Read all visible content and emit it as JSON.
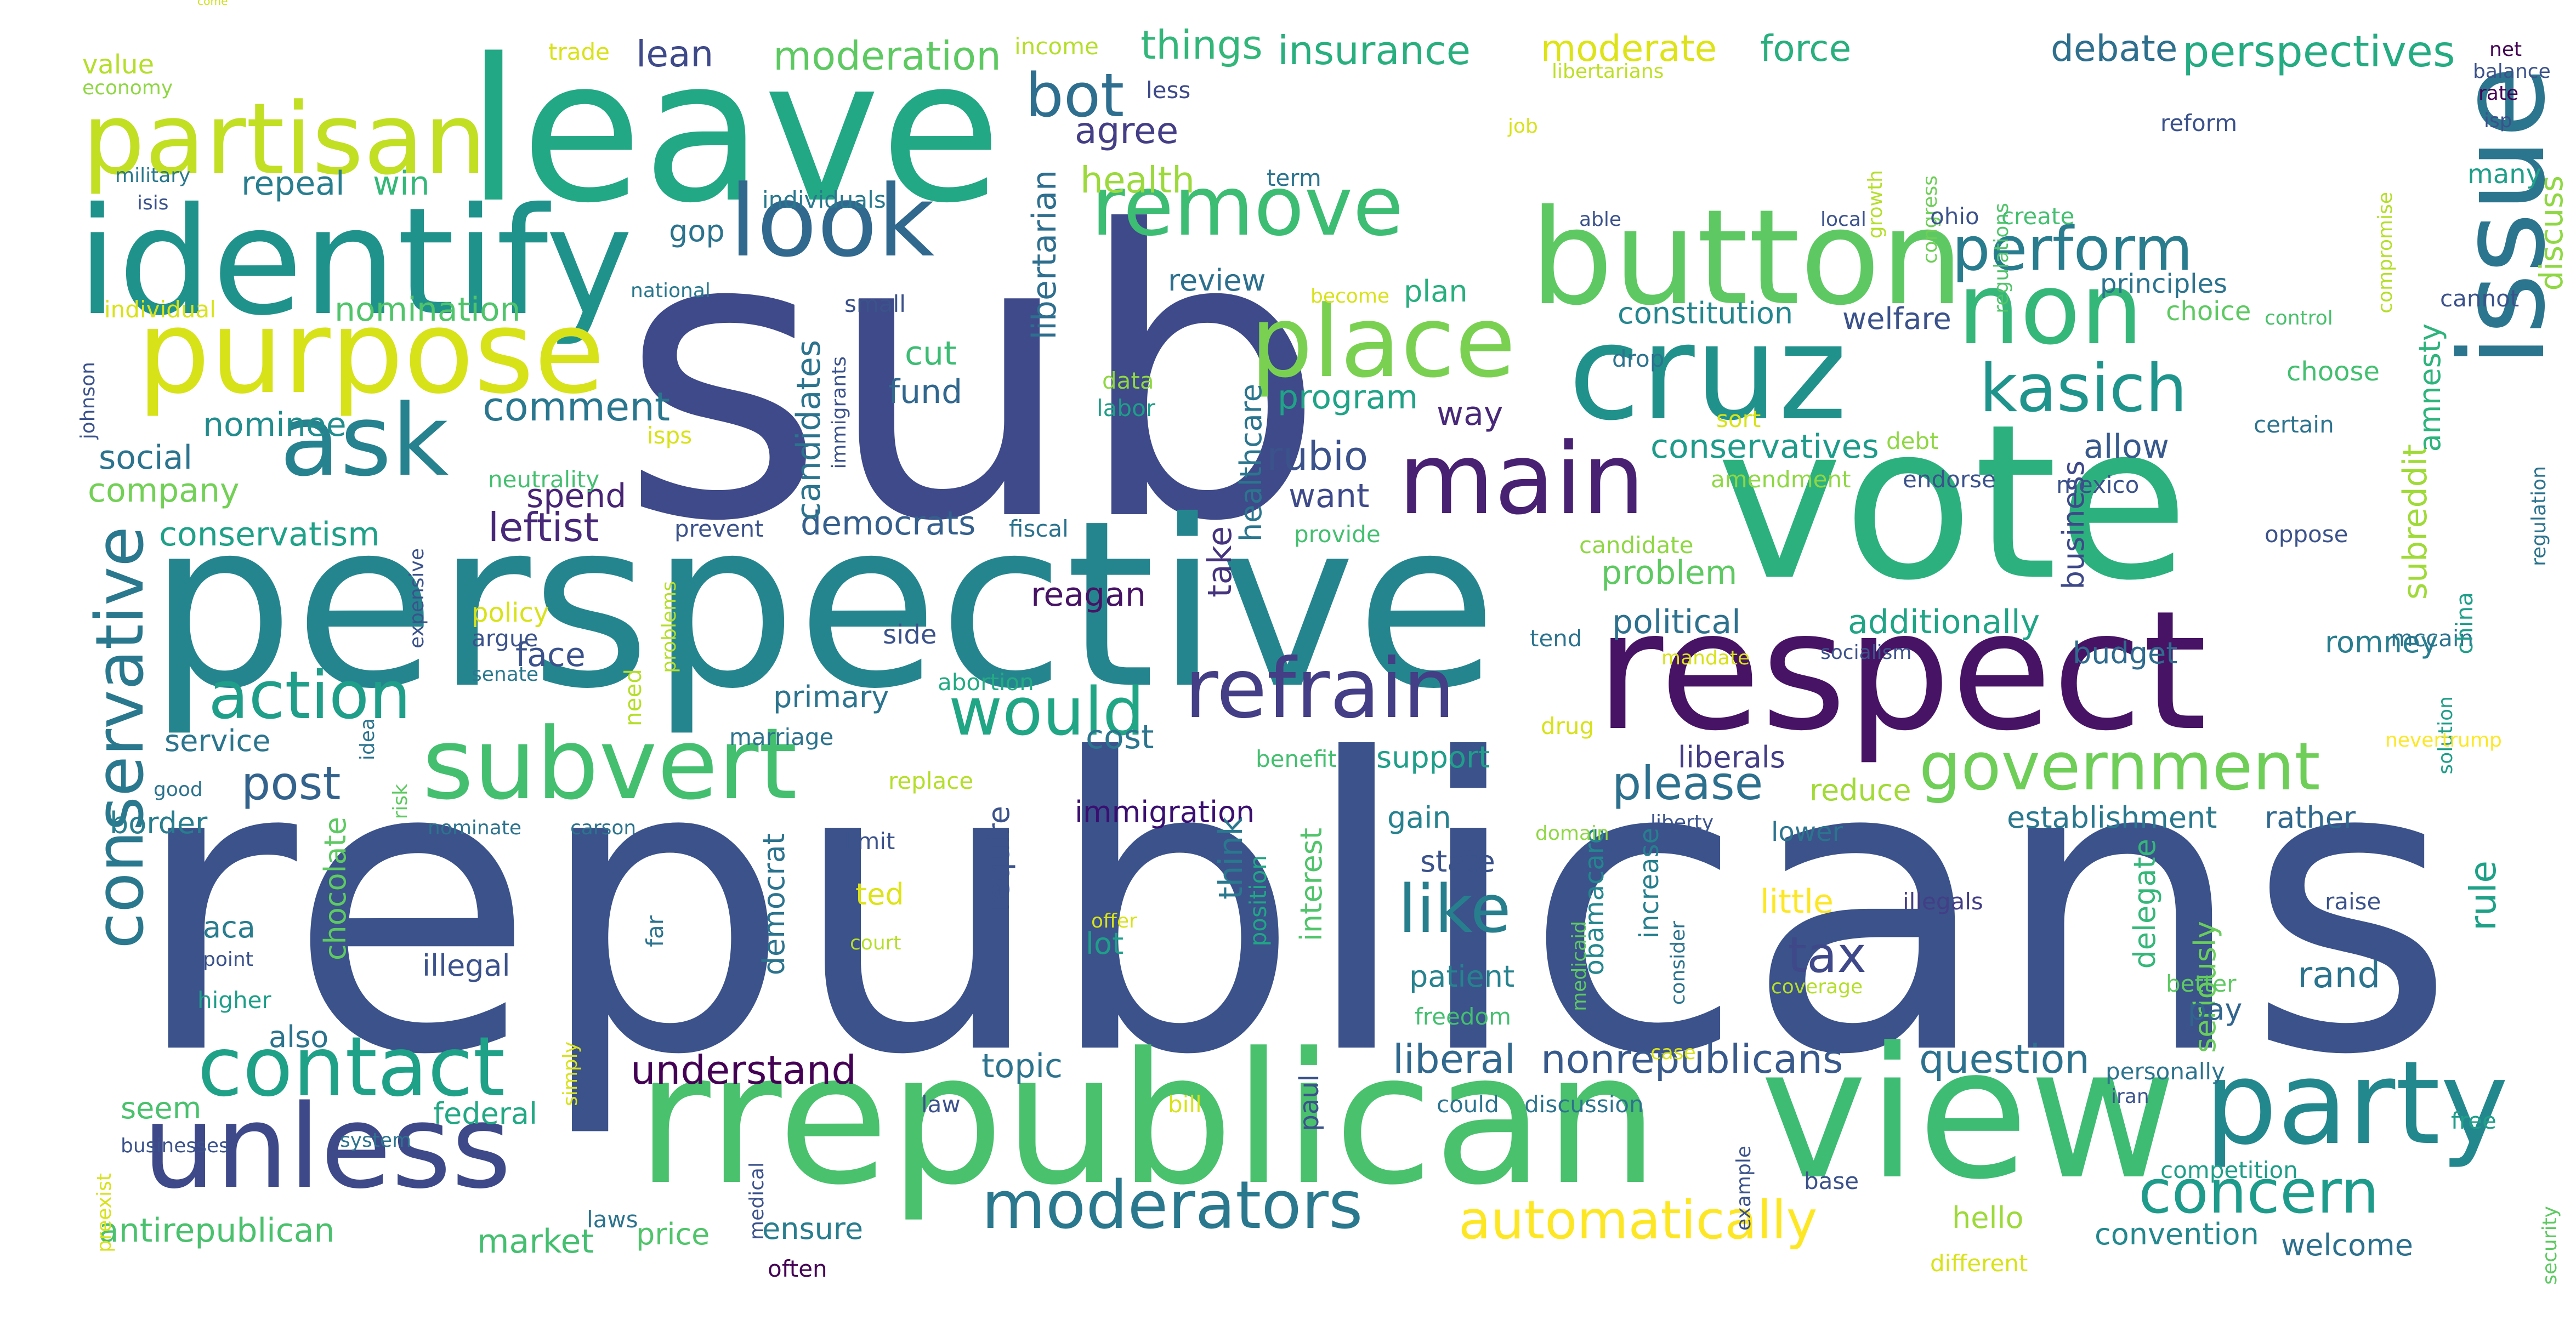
{
  "wordcloud": {
    "words": [
      {
        "text": "republicans",
        "color": "#3b528b"
      },
      {
        "text": "sub",
        "color": "#3e4a89"
      },
      {
        "text": "republican",
        "color": "#472d7b"
      },
      {
        "text": "perspective",
        "color": "#25858e"
      },
      {
        "text": "vote",
        "color": "#2cb17e"
      },
      {
        "text": "leave",
        "color": "#22a884"
      },
      {
        "text": "rrepublican",
        "color": "#4ac16d"
      },
      {
        "text": "view",
        "color": "#3fbc73"
      },
      {
        "text": "issue",
        "color": "#2b758e"
      },
      {
        "text": "respect",
        "color": "#471365"
      },
      {
        "text": "discuss",
        "color": "#8fd744"
      },
      {
        "text": "identify",
        "color": "#20928c"
      },
      {
        "text": "come",
        "color": "#cde11d"
      },
      {
        "text": "button",
        "color": "#5ec962"
      },
      {
        "text": "cruz",
        "color": "#21918c"
      },
      {
        "text": "purpose",
        "color": "#d8e219"
      },
      {
        "text": "party",
        "color": "#23888e"
      },
      {
        "text": "unless",
        "color": "#3e4989"
      },
      {
        "text": "partisan",
        "color": "#c2df23"
      },
      {
        "text": "main",
        "color": "#482173"
      },
      {
        "text": "place",
        "color": "#7ad151"
      },
      {
        "text": "non",
        "color": "#35b779"
      },
      {
        "text": "subvert",
        "color": "#44bf70"
      },
      {
        "text": "look",
        "color": "#31688e"
      },
      {
        "text": "remove",
        "color": "#3dbc74"
      },
      {
        "text": "ask",
        "color": "#26828e"
      },
      {
        "text": "refrain",
        "color": "#433e85"
      },
      {
        "text": "contact",
        "color": "#1fa188"
      },
      {
        "text": "government",
        "color": "#6ece58"
      },
      {
        "text": "moderators",
        "color": "#2a788e"
      },
      {
        "text": "conservative",
        "color": "#2a788e"
      },
      {
        "text": "action",
        "color": "#1f9e89"
      },
      {
        "text": "would",
        "color": "#21a685"
      },
      {
        "text": "kasich",
        "color": "#1f948c"
      },
      {
        "text": "concern",
        "color": "#1e9b8a"
      },
      {
        "text": "automatically",
        "color": "#fde725"
      },
      {
        "text": "like",
        "color": "#277f8e"
      },
      {
        "text": "perform",
        "color": "#287c8e"
      },
      {
        "text": "bot",
        "color": "#2e6e8e"
      },
      {
        "text": "tax",
        "color": "#3f4889"
      },
      {
        "text": "please",
        "color": "#2d708e"
      },
      {
        "text": "post",
        "color": "#33638d"
      },
      {
        "text": "liberal",
        "color": "#31688e"
      },
      {
        "text": "nonrepublicans",
        "color": "#38598c"
      },
      {
        "text": "question",
        "color": "#2c728e"
      },
      {
        "text": "understand",
        "color": "#440154"
      },
      {
        "text": "comment",
        "color": "#2a768e"
      },
      {
        "text": "insurance",
        "color": "#29af7f"
      },
      {
        "text": "things",
        "color": "#32b67a"
      },
      {
        "text": "moderation",
        "color": "#5ec962"
      },
      {
        "text": "moderate",
        "color": "#dde318"
      },
      {
        "text": "force",
        "color": "#29af7f"
      },
      {
        "text": "debate",
        "color": "#2e6f8e"
      },
      {
        "text": "perspectives",
        "color": "#25ab82"
      },
      {
        "text": "lean",
        "color": "#3e4a89"
      },
      {
        "text": "agree",
        "color": "#433e85"
      },
      {
        "text": "health",
        "color": "#9bd93c"
      },
      {
        "text": "repeal",
        "color": "#287d8e"
      },
      {
        "text": "win",
        "color": "#35b779"
      },
      {
        "text": "nomination",
        "color": "#50c46a"
      },
      {
        "text": "nominee",
        "color": "#228c8d"
      },
      {
        "text": "social",
        "color": "#2c738e"
      },
      {
        "text": "company",
        "color": "#73d056"
      },
      {
        "text": "conservatism",
        "color": "#1fa088"
      },
      {
        "text": "leftist",
        "color": "#482878"
      },
      {
        "text": "spend",
        "color": "#482475"
      },
      {
        "text": "democrats",
        "color": "#355f8d"
      },
      {
        "text": "candidates",
        "color": "#2c738e"
      },
      {
        "text": "cut",
        "color": "#3dbc74"
      },
      {
        "text": "fund",
        "color": "#31678e"
      },
      {
        "text": "libertarian",
        "color": "#2e6e8e"
      },
      {
        "text": "program",
        "color": "#20a386"
      },
      {
        "text": "rubio",
        "color": "#3b528b"
      },
      {
        "text": "want",
        "color": "#3e4a89"
      },
      {
        "text": "healthcare",
        "color": "#2b758e"
      },
      {
        "text": "take",
        "color": "#46337e"
      },
      {
        "text": "reagan",
        "color": "#471365"
      },
      {
        "text": "way",
        "color": "#482878"
      },
      {
        "text": "review",
        "color": "#2d708e"
      },
      {
        "text": "plan",
        "color": "#29af7f"
      },
      {
        "text": "conservatives",
        "color": "#1e9b8a"
      },
      {
        "text": "allow",
        "color": "#38598c"
      },
      {
        "text": "subreddit",
        "color": "#a0da39"
      },
      {
        "text": "amnesty",
        "color": "#2eb37c"
      },
      {
        "text": "constitution",
        "color": "#24868e"
      },
      {
        "text": "welfare",
        "color": "#3b528b"
      },
      {
        "text": "problem",
        "color": "#5ec962"
      },
      {
        "text": "political",
        "color": "#2d718e"
      },
      {
        "text": "additionally",
        "color": "#20a486"
      },
      {
        "text": "budget",
        "color": "#2f6b8e"
      },
      {
        "text": "business",
        "color": "#3e4989"
      },
      {
        "text": "romney",
        "color": "#287d8e"
      },
      {
        "text": "liberals",
        "color": "#433e85"
      },
      {
        "text": "reduce",
        "color": "#a2da37"
      },
      {
        "text": "establishment",
        "color": "#2a788e"
      },
      {
        "text": "rather",
        "color": "#31688e"
      },
      {
        "text": "delegate",
        "color": "#35b779"
      },
      {
        "text": "seriously",
        "color": "#69cd5b"
      },
      {
        "text": "rand",
        "color": "#2c738e"
      },
      {
        "text": "rule",
        "color": "#1fa188"
      },
      {
        "text": "pay",
        "color": "#32658e"
      },
      {
        "text": "convention",
        "color": "#23888e"
      },
      {
        "text": "welcome",
        "color": "#2d708e"
      },
      {
        "text": "hello",
        "color": "#9dd93b"
      },
      {
        "text": "little",
        "color": "#fde725"
      },
      {
        "text": "illegals",
        "color": "#433e85"
      },
      {
        "text": "obamacare",
        "color": "#24868e"
      },
      {
        "text": "increase",
        "color": "#277f8e"
      },
      {
        "text": "state",
        "color": "#3b528b"
      },
      {
        "text": "gain",
        "color": "#26828e"
      },
      {
        "text": "patient",
        "color": "#26828e"
      },
      {
        "text": "cost",
        "color": "#2b758e"
      },
      {
        "text": "immigration",
        "color": "#3b0f70"
      },
      {
        "text": "support",
        "color": "#1f9e89"
      },
      {
        "text": "think",
        "color": "#2a788e"
      },
      {
        "text": "interest",
        "color": "#50c46a"
      },
      {
        "text": "position",
        "color": "#21a685"
      },
      {
        "text": "require",
        "color": "#3b528b"
      },
      {
        "text": "lot",
        "color": "#1f9e89"
      },
      {
        "text": "ted",
        "color": "#dde318"
      },
      {
        "text": "democrat",
        "color": "#2c738e"
      },
      {
        "text": "primary",
        "color": "#2c738e"
      },
      {
        "text": "abortion",
        "color": "#24aa83"
      },
      {
        "text": "face",
        "color": "#3b528b"
      },
      {
        "text": "service",
        "color": "#2b758e"
      },
      {
        "text": "border",
        "color": "#287d8e"
      },
      {
        "text": "chocolate",
        "color": "#5ec962"
      },
      {
        "text": "aca",
        "color": "#287d8e"
      },
      {
        "text": "illegal",
        "color": "#3b528b"
      },
      {
        "text": "also",
        "color": "#2c738e"
      },
      {
        "text": "seem",
        "color": "#4ac16d"
      },
      {
        "text": "federal",
        "color": "#22a884"
      },
      {
        "text": "topic",
        "color": "#2c738e"
      },
      {
        "text": "antirepublican",
        "color": "#4ac16d"
      },
      {
        "text": "market",
        "color": "#44bf70"
      },
      {
        "text": "price",
        "color": "#50c46a"
      },
      {
        "text": "ensure",
        "color": "#287d8e"
      },
      {
        "text": "paul",
        "color": "#3b528b"
      },
      {
        "text": "value",
        "color": "#b5de2b"
      },
      {
        "text": "economy",
        "color": "#8fd744"
      },
      {
        "text": "trade",
        "color": "#d8e219"
      },
      {
        "text": "income",
        "color": "#b5de2b"
      },
      {
        "text": "less",
        "color": "#3e4a89"
      },
      {
        "text": "libertarians",
        "color": "#bddf26"
      },
      {
        "text": "net",
        "color": "#440154"
      },
      {
        "text": "balance",
        "color": "#3b528b"
      },
      {
        "text": "rate",
        "color": "#440154"
      },
      {
        "text": "isp",
        "color": "#3b528b"
      },
      {
        "text": "reform",
        "color": "#3b528b"
      },
      {
        "text": "many",
        "color": "#1f9e89"
      },
      {
        "text": "military",
        "color": "#2a788e"
      },
      {
        "text": "isis",
        "color": "#3b528b"
      },
      {
        "text": "individuals",
        "color": "#2a788e"
      },
      {
        "text": "term",
        "color": "#2c738e"
      },
      {
        "text": "job",
        "color": "#d8e219"
      },
      {
        "text": "growth",
        "color": "#b5de2b"
      },
      {
        "text": "congress",
        "color": "#6ece58"
      },
      {
        "text": "regulations",
        "color": "#50c46a"
      },
      {
        "text": "compromise",
        "color": "#b5de2b"
      },
      {
        "text": "gop",
        "color": "#2c738e"
      },
      {
        "text": "able",
        "color": "#3b528b"
      },
      {
        "text": "local",
        "color": "#3b528b"
      },
      {
        "text": "ohio",
        "color": "#3b528b"
      },
      {
        "text": "create",
        "color": "#44bf70"
      },
      {
        "text": "principles",
        "color": "#2c738e"
      },
      {
        "text": "cannot",
        "color": "#3b528b"
      },
      {
        "text": "individual",
        "color": "#d8e219"
      },
      {
        "text": "national",
        "color": "#2a788e"
      },
      {
        "text": "small",
        "color": "#3b528b"
      },
      {
        "text": "become",
        "color": "#d8e219"
      },
      {
        "text": "choice",
        "color": "#5ec962"
      },
      {
        "text": "control",
        "color": "#4ac16d"
      },
      {
        "text": "johnson",
        "color": "#3b528b"
      },
      {
        "text": "immigrants",
        "color": "#3b528b"
      },
      {
        "text": "data",
        "color": "#8fd744"
      },
      {
        "text": "labor",
        "color": "#1f9e89"
      },
      {
        "text": "drop",
        "color": "#2c738e"
      },
      {
        "text": "choose",
        "color": "#44bf70"
      },
      {
        "text": "certain",
        "color": "#2c738e"
      },
      {
        "text": "regulation",
        "color": "#2c738e"
      },
      {
        "text": "isps",
        "color": "#d8e219"
      },
      {
        "text": "neutrality",
        "color": "#44bf70"
      },
      {
        "text": "sort",
        "color": "#d8e219"
      },
      {
        "text": "debt",
        "color": "#8fd744"
      },
      {
        "text": "amendment",
        "color": "#8fd744"
      },
      {
        "text": "endorse",
        "color": "#3b528b"
      },
      {
        "text": "mexico",
        "color": "#3b528b"
      },
      {
        "text": "prevent",
        "color": "#3b528b"
      },
      {
        "text": "fiscal",
        "color": "#2c738e"
      },
      {
        "text": "provide",
        "color": "#44bf70"
      },
      {
        "text": "candidate",
        "color": "#8fd744"
      },
      {
        "text": "oppose",
        "color": "#3b528b"
      },
      {
        "text": "expensive",
        "color": "#3b528b"
      },
      {
        "text": "problems",
        "color": "#b5de2b"
      },
      {
        "text": "policy",
        "color": "#d8e219"
      },
      {
        "text": "argue",
        "color": "#3b528b"
      },
      {
        "text": "senate",
        "color": "#2a788e"
      },
      {
        "text": "side",
        "color": "#3b528b"
      },
      {
        "text": "tend",
        "color": "#2c738e"
      },
      {
        "text": "socialism",
        "color": "#3b528b"
      },
      {
        "text": "mandate",
        "color": "#d8e219"
      },
      {
        "text": "mccain",
        "color": "#2c738e"
      },
      {
        "text": "china",
        "color": "#1f9e89"
      },
      {
        "text": "need",
        "color": "#b5de2b"
      },
      {
        "text": "marriage",
        "color": "#2c738e"
      },
      {
        "text": "drug",
        "color": "#d8e219"
      },
      {
        "text": "solution",
        "color": "#1f9e89"
      },
      {
        "text": "nevertrump",
        "color": "#fde725"
      },
      {
        "text": "good",
        "color": "#2c738e"
      },
      {
        "text": "idea",
        "color": "#2c738e"
      },
      {
        "text": "benefit",
        "color": "#44bf70"
      },
      {
        "text": "replace",
        "color": "#b5de2b"
      },
      {
        "text": "risk",
        "color": "#5ec962"
      },
      {
        "text": "nominate",
        "color": "#2c738e"
      },
      {
        "text": "carson",
        "color": "#2c738e"
      },
      {
        "text": "limit",
        "color": "#3b528b"
      },
      {
        "text": "domain",
        "color": "#8fd744"
      },
      {
        "text": "liberty",
        "color": "#3b528b"
      },
      {
        "text": "lower",
        "color": "#2c738e"
      },
      {
        "text": "raise",
        "color": "#3b528b"
      },
      {
        "text": "point",
        "color": "#3b528b"
      },
      {
        "text": "higher",
        "color": "#1f9e89"
      },
      {
        "text": "far",
        "color": "#2c738e"
      },
      {
        "text": "offer",
        "color": "#d8e219"
      },
      {
        "text": "court",
        "color": "#b5de2b"
      },
      {
        "text": "medicaid",
        "color": "#5ec962"
      },
      {
        "text": "consider",
        "color": "#2c738e"
      },
      {
        "text": "coverage",
        "color": "#b5de2b"
      },
      {
        "text": "better",
        "color": "#5ec962"
      },
      {
        "text": "freedom",
        "color": "#44bf70"
      },
      {
        "text": "case",
        "color": "#d8e219"
      },
      {
        "text": "simply",
        "color": "#d8e219"
      },
      {
        "text": "law",
        "color": "#3b528b"
      },
      {
        "text": "bill",
        "color": "#d8e219"
      },
      {
        "text": "could",
        "color": "#2c738e"
      },
      {
        "text": "discussion",
        "color": "#2c738e"
      },
      {
        "text": "personally",
        "color": "#2c738e"
      },
      {
        "text": "free",
        "color": "#1f9e89"
      },
      {
        "text": "iran",
        "color": "#3b528b"
      },
      {
        "text": "preexist",
        "color": "#d8e219"
      },
      {
        "text": "businesses",
        "color": "#3b528b"
      },
      {
        "text": "system",
        "color": "#2c738e"
      },
      {
        "text": "laws",
        "color": "#2c738e"
      },
      {
        "text": "medical",
        "color": "#3b528b"
      },
      {
        "text": "often",
        "color": "#440154"
      },
      {
        "text": "example",
        "color": "#3b528b"
      },
      {
        "text": "base",
        "color": "#3b528b"
      },
      {
        "text": "competition",
        "color": "#1f9e89"
      },
      {
        "text": "different",
        "color": "#d8e219"
      },
      {
        "text": "security",
        "color": "#5ec962"
      }
    ]
  }
}
